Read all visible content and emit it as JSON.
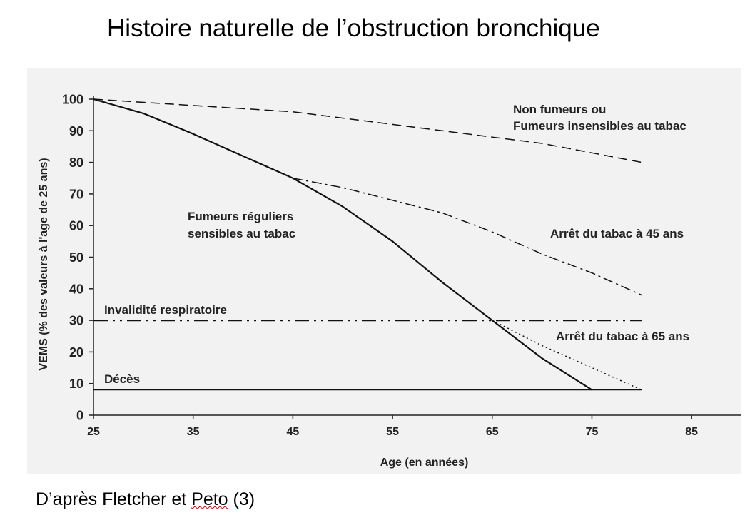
{
  "page": {
    "title": "Histoire naturelle de l’obstruction bronchique",
    "caption_prefix": "D’après Fletcher et ",
    "caption_name": "Peto",
    "caption_suffix": " (3)"
  },
  "chart_data": {
    "type": "line",
    "title": "",
    "xlabel": "Age (en années)",
    "ylabel": "VEMS (% des valeurs à l'age de 25 ans)",
    "xlim": [
      25,
      90
    ],
    "ylim": [
      0,
      100
    ],
    "x_ticks": [
      25,
      35,
      45,
      55,
      65,
      75,
      85
    ],
    "y_ticks": [
      0,
      10,
      20,
      30,
      40,
      50,
      60,
      70,
      80,
      90,
      100
    ],
    "grid": false,
    "series": [
      {
        "id": "non-fumeurs",
        "style": "dashed",
        "x": [
          25,
          35,
          45,
          55,
          65,
          70,
          75,
          80
        ],
        "y": [
          100,
          98,
          96,
          92,
          88,
          86,
          83,
          80
        ]
      },
      {
        "id": "fumeurs-reguliers",
        "style": "solid",
        "x": [
          25,
          30,
          35,
          40,
          45,
          50,
          55,
          60,
          65,
          70,
          75
        ],
        "y": [
          100,
          95.5,
          89,
          82,
          75,
          66,
          55,
          42,
          30,
          18,
          8
        ]
      },
      {
        "id": "arret-45",
        "style": "dashdot",
        "x": [
          45,
          50,
          55,
          60,
          65,
          70,
          75,
          80
        ],
        "y": [
          75,
          72,
          68,
          64,
          58,
          51,
          45,
          38
        ]
      },
      {
        "id": "arret-65",
        "style": "dotted",
        "x": [
          65,
          70,
          75,
          80
        ],
        "y": [
          30,
          22,
          15,
          8
        ]
      }
    ],
    "reference_lines": [
      {
        "id": "invalidite",
        "label": "Invalidité respiratoire",
        "y": 30,
        "x_start": 25,
        "x_end": 80,
        "style": "dashdotdot"
      },
      {
        "id": "deces",
        "label": "Décès",
        "y": 8,
        "x_start": 25,
        "x_end": 80,
        "style": "solid"
      }
    ],
    "annotations": [
      {
        "id": "non-fumeurs",
        "lines": [
          "Non fumeurs ou",
          "Fumeurs insensibles au tabac"
        ]
      },
      {
        "id": "fumeurs-reguliers",
        "lines": [
          "Fumeurs réguliers",
          "sensibles au tabac"
        ]
      },
      {
        "id": "arret-45",
        "lines": [
          "Arrêt du tabac à 45 ans"
        ]
      },
      {
        "id": "arret-65",
        "lines": [
          "Arrêt du tabac à 65 ans"
        ]
      },
      {
        "id": "invalidite",
        "lines": [
          "Invalidité respiratoire"
        ]
      },
      {
        "id": "deces",
        "lines": [
          "Décès"
        ]
      }
    ]
  }
}
